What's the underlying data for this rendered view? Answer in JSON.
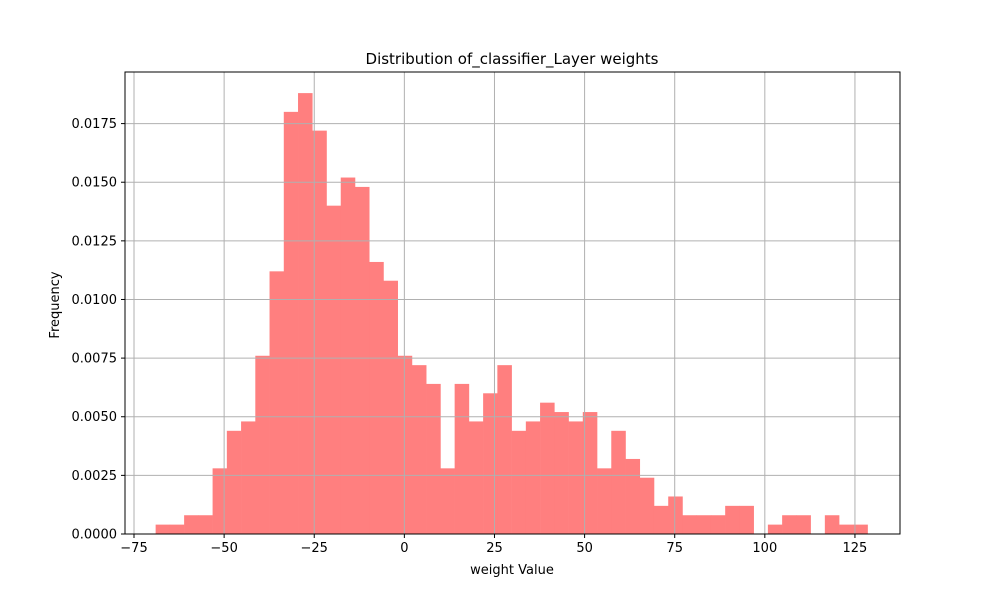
{
  "chart_data": {
    "type": "bar",
    "subtype": "histogram",
    "title": "Distribution of_classifier_Layer weights",
    "xlabel": "weight Value",
    "ylabel": "Frequency",
    "xlim": [
      -77.5,
      137.5
    ],
    "ylim": [
      0,
      0.0197
    ],
    "grid": true,
    "bar_color": "#ff7f7f",
    "grid_color": "#b0b0b0",
    "bin_start": -69.0,
    "bin_width": 3.95,
    "values": [
      0.0004,
      0.0004,
      0.0008,
      0.0008,
      0.0028,
      0.0044,
      0.0048,
      0.0076,
      0.0112,
      0.018,
      0.0188,
      0.0172,
      0.014,
      0.0152,
      0.0148,
      0.0116,
      0.0108,
      0.0076,
      0.0072,
      0.0064,
      0.0028,
      0.0064,
      0.0048,
      0.006,
      0.0072,
      0.0044,
      0.0048,
      0.0056,
      0.0052,
      0.0048,
      0.0052,
      0.0028,
      0.0044,
      0.0032,
      0.0024,
      0.0012,
      0.0016,
      0.0008,
      0.0008,
      0.0008,
      0.0012,
      0.0012,
      0.0,
      0.0004,
      0.0008,
      0.0008,
      0.0,
      0.0008,
      0.0004,
      0.0004
    ],
    "x_ticks": [
      -75,
      -50,
      -25,
      0,
      25,
      50,
      75,
      100,
      125
    ],
    "x_tick_labels": [
      "−75",
      "−50",
      "−25",
      "0",
      "25",
      "50",
      "75",
      "100",
      "125"
    ],
    "y_ticks": [
      0,
      0.0025,
      0.005,
      0.0075,
      0.01,
      0.0125,
      0.015,
      0.0175
    ],
    "y_tick_labels": [
      "0.0000",
      "0.0025",
      "0.0050",
      "0.0075",
      "0.0100",
      "0.0125",
      "0.0150",
      "0.0175"
    ]
  }
}
